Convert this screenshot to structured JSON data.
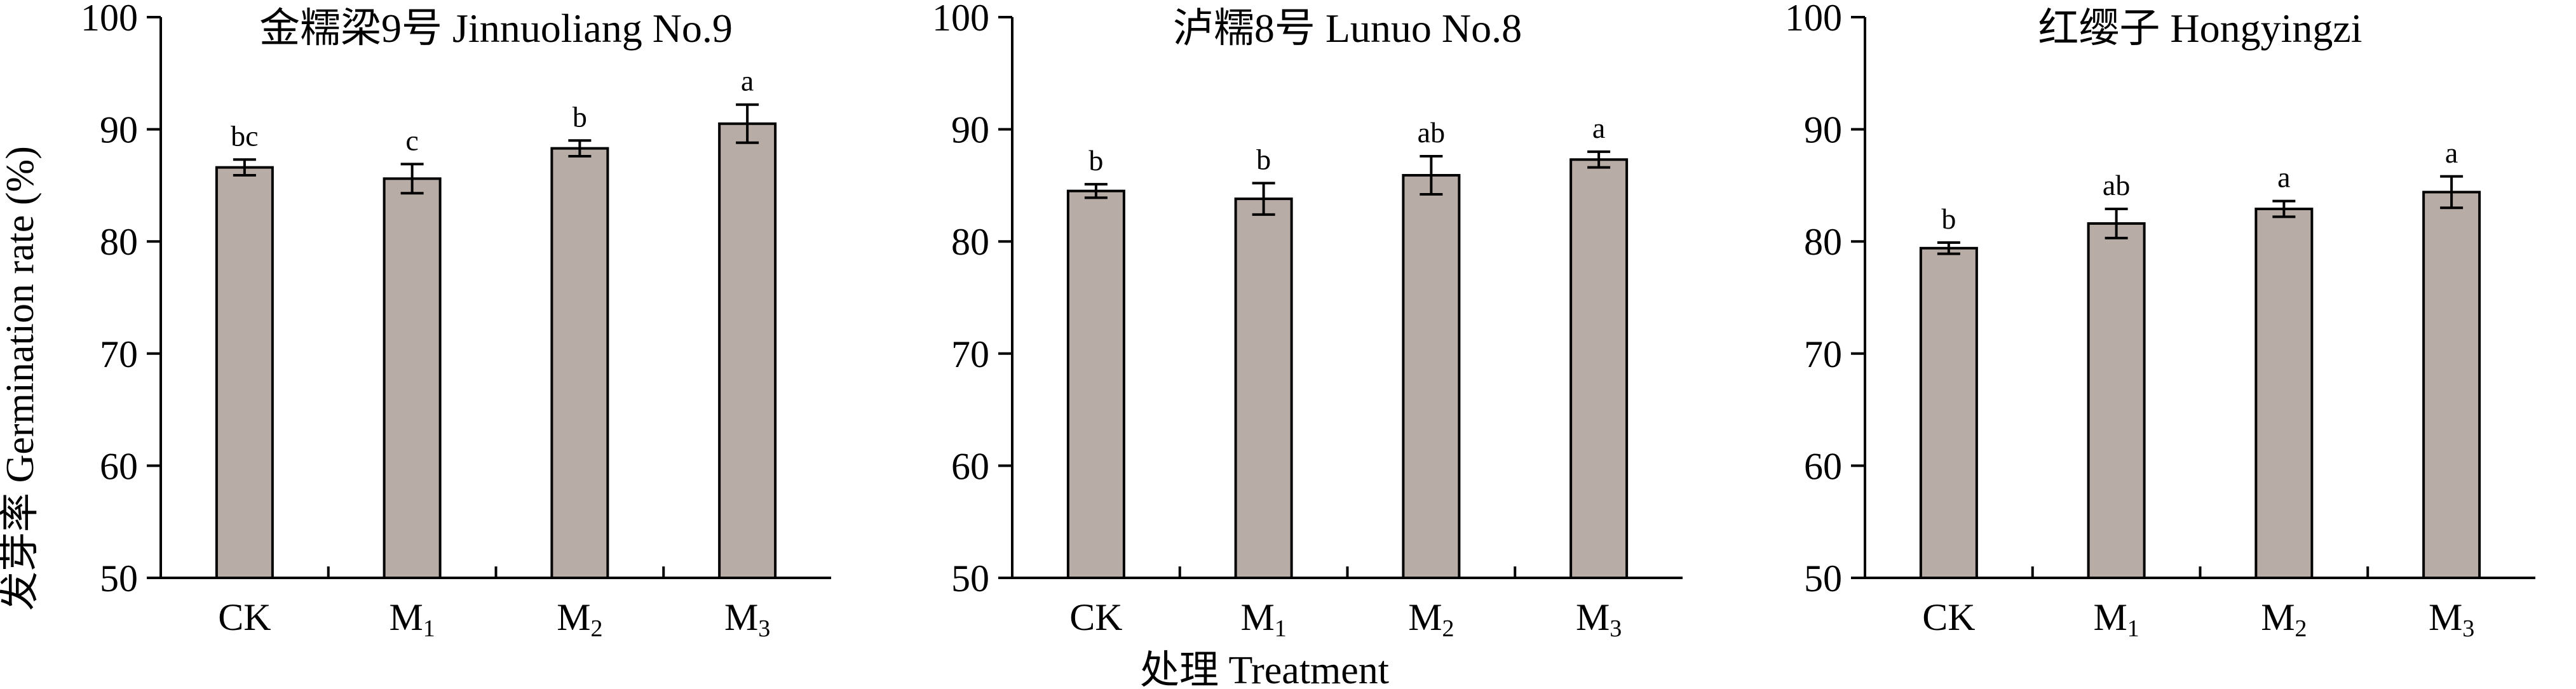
{
  "figure": {
    "ylabel": "发芽率 Germination rate (%)",
    "xlabel": "处理 Treatment",
    "bar_color": "#b8aca7",
    "line_color": "#000000"
  },
  "chart_data": [
    {
      "type": "bar",
      "title": "金糯梁9号 Jinnuoliang No.9",
      "categories": [
        {
          "base": "CK",
          "sub": ""
        },
        {
          "base": "M",
          "sub": "1"
        },
        {
          "base": "M",
          "sub": "2"
        },
        {
          "base": "M",
          "sub": "3"
        }
      ],
      "values": [
        86.6,
        85.6,
        88.3,
        90.5
      ],
      "errors": [
        0.7,
        1.3,
        0.7,
        1.7
      ],
      "letters": [
        "bc",
        "c",
        "b",
        "a"
      ],
      "ylim": [
        50,
        100
      ],
      "yticks": [
        50,
        60,
        70,
        80,
        90,
        100
      ]
    },
    {
      "type": "bar",
      "title": "泸糯8号 Lunuo No.8",
      "categories": [
        {
          "base": "CK",
          "sub": ""
        },
        {
          "base": "M",
          "sub": "1"
        },
        {
          "base": "M",
          "sub": "2"
        },
        {
          "base": "M",
          "sub": "3"
        }
      ],
      "values": [
        84.5,
        83.8,
        85.9,
        87.3
      ],
      "errors": [
        0.6,
        1.4,
        1.7,
        0.7
      ],
      "letters": [
        "b",
        "b",
        "ab",
        "a"
      ],
      "ylim": [
        50,
        100
      ],
      "yticks": [
        50,
        60,
        70,
        80,
        90,
        100
      ]
    },
    {
      "type": "bar",
      "title": "红缨子 Hongyingzi",
      "categories": [
        {
          "base": "CK",
          "sub": ""
        },
        {
          "base": "M",
          "sub": "1"
        },
        {
          "base": "M",
          "sub": "2"
        },
        {
          "base": "M",
          "sub": "3"
        }
      ],
      "values": [
        79.4,
        81.6,
        82.9,
        84.4
      ],
      "errors": [
        0.5,
        1.3,
        0.7,
        1.4
      ],
      "letters": [
        "b",
        "ab",
        "a",
        "a"
      ],
      "ylim": [
        50,
        100
      ],
      "yticks": [
        50,
        60,
        70,
        80,
        90,
        100
      ]
    }
  ]
}
